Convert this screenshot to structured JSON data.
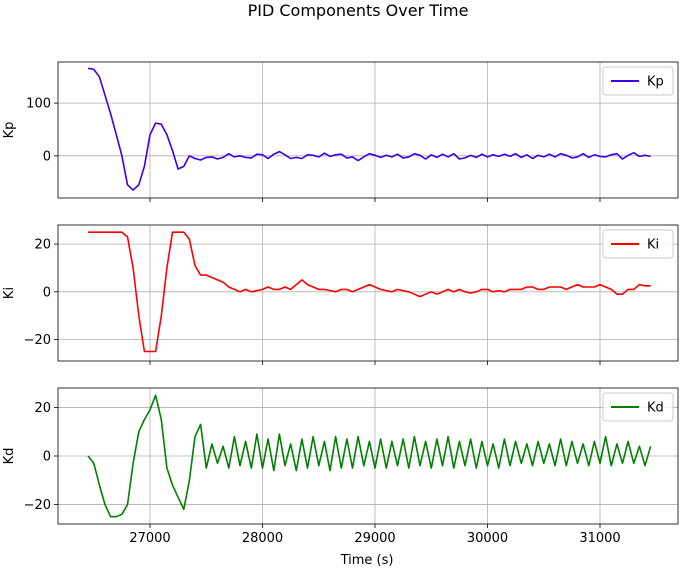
{
  "figure": {
    "title": "PID Components Over Time",
    "xlabel": "Time (s)"
  },
  "chart_data": [
    {
      "type": "line",
      "ylabel": "Kp",
      "xlim": [
        6200,
        31750
      ],
      "ylim": [
        -80,
        178
      ],
      "xticks": [
        27000,
        28000,
        29000,
        30000,
        31000
      ],
      "xtick_labels_visible": false,
      "yticks": [
        0,
        100
      ],
      "grid": true,
      "legend": "top-right",
      "series": [
        {
          "name": "Kp",
          "color": "#3b00e8",
          "x": [
            26450,
            26500,
            26550,
            26600,
            26650,
            26700,
            26750,
            26800,
            26850,
            26900,
            26950,
            27000,
            27050,
            27100,
            27150,
            27200,
            27250,
            27300,
            27350,
            27400,
            27450,
            27500,
            27550,
            27600,
            27650,
            27700,
            27750,
            27800,
            27850,
            27900,
            27950,
            28000,
            28050,
            28100,
            28150,
            28200,
            28250,
            28300,
            28350,
            28400,
            28450,
            28500,
            28550,
            28600,
            28650,
            28700,
            28750,
            28800,
            28850,
            28900,
            28950,
            29000,
            29050,
            29100,
            29150,
            29200,
            29250,
            29300,
            29350,
            29400,
            29450,
            29500,
            29550,
            29600,
            29650,
            29700,
            29750,
            29800,
            29850,
            29900,
            29950,
            30000,
            30050,
            30100,
            30150,
            30200,
            30250,
            30300,
            30350,
            30400,
            30450,
            30500,
            30550,
            30600,
            30650,
            30700,
            30750,
            30800,
            30850,
            30900,
            30950,
            31000,
            31050,
            31100,
            31150,
            31200,
            31250,
            31300,
            31350,
            31400,
            31450
          ],
          "y": [
            166,
            164,
            150,
            115,
            80,
            40,
            0,
            -55,
            -65,
            -55,
            -20,
            40,
            62,
            60,
            40,
            10,
            -25,
            -20,
            0,
            -5,
            -8,
            -3,
            -2,
            -6,
            -3,
            4,
            -2,
            0,
            -3,
            -4,
            3,
            2,
            -5,
            3,
            8,
            2,
            -5,
            -3,
            -5,
            2,
            1,
            -2,
            5,
            -1,
            2,
            3,
            -4,
            -2,
            -9,
            -2,
            4,
            1,
            -3,
            1,
            -2,
            3,
            -4,
            -2,
            4,
            1,
            -6,
            2,
            -3,
            3,
            -2,
            4,
            -6,
            -4,
            1,
            -3,
            3,
            -2,
            2,
            -1,
            3,
            -1,
            4,
            -3,
            2,
            -5,
            1,
            -2,
            3,
            -2,
            4,
            1,
            -4,
            -2,
            4,
            -3,
            2,
            -1,
            -2,
            2,
            4,
            -6,
            1,
            6,
            -1,
            1,
            -1
          ]
        }
      ]
    },
    {
      "type": "line",
      "ylabel": "Ki",
      "xlim": [
        6200,
        31750
      ],
      "ylim": [
        -29,
        28
      ],
      "xticks": [
        27000,
        28000,
        29000,
        30000,
        31000
      ],
      "xtick_labels_visible": false,
      "yticks": [
        -20,
        0,
        20
      ],
      "grid": true,
      "legend": "top-right",
      "series": [
        {
          "name": "Ki",
          "color": "#ff0000",
          "x": [
            26450,
            26500,
            26600,
            26700,
            26750,
            26800,
            26850,
            26900,
            26950,
            27000,
            27050,
            27100,
            27150,
            27200,
            27250,
            27300,
            27350,
            27400,
            27450,
            27500,
            27550,
            27600,
            27650,
            27700,
            27750,
            27800,
            27850,
            27900,
            27950,
            28000,
            28050,
            28100,
            28150,
            28200,
            28250,
            28300,
            28350,
            28400,
            28450,
            28500,
            28550,
            28600,
            28650,
            28700,
            28750,
            28800,
            28850,
            28900,
            28950,
            29000,
            29050,
            29100,
            29150,
            29200,
            29250,
            29300,
            29350,
            29400,
            29450,
            29500,
            29550,
            29600,
            29650,
            29700,
            29750,
            29800,
            29850,
            29900,
            29950,
            30000,
            30050,
            30100,
            30150,
            30200,
            30250,
            30300,
            30350,
            30400,
            30450,
            30500,
            30550,
            30600,
            30650,
            30700,
            30750,
            30800,
            30850,
            30900,
            30950,
            31000,
            31050,
            31100,
            31150,
            31200,
            31250,
            31300,
            31350,
            31400,
            31450
          ],
          "y": [
            25,
            25,
            25,
            25,
            25,
            23,
            10,
            -10,
            -25,
            -25,
            -25,
            -10,
            10,
            25,
            25,
            25,
            22,
            11,
            7,
            7,
            6,
            5,
            4,
            2,
            1,
            0,
            1,
            0,
            0.5,
            1,
            2,
            1,
            1,
            2,
            1,
            3,
            5,
            3,
            2,
            1,
            1,
            0.5,
            0,
            1,
            1,
            0,
            1,
            2,
            3,
            2,
            1,
            0.5,
            0,
            1,
            0.5,
            0,
            -1,
            -2,
            -1,
            0,
            -1,
            0,
            1,
            0,
            1,
            0,
            -0.5,
            0,
            1,
            1,
            0,
            0.5,
            0,
            1,
            1,
            1,
            2,
            2,
            1,
            1,
            2,
            2,
            2,
            1,
            2,
            3,
            2,
            2,
            2,
            3,
            2,
            1,
            -1,
            -1,
            1,
            1,
            3,
            2.5,
            2.5
          ]
        }
      ]
    },
    {
      "type": "line",
      "ylabel": "Kd",
      "xlim": [
        6200,
        31750
      ],
      "ylim": [
        -28,
        28
      ],
      "xticks": [
        27000,
        28000,
        29000,
        30000,
        31000
      ],
      "xtick_labels_visible": true,
      "yticks": [
        -20,
        0,
        20
      ],
      "grid": true,
      "legend": "top-right",
      "series": [
        {
          "name": "Kd",
          "color": "#008000",
          "x": [
            26450,
            26500,
            26550,
            26600,
            26650,
            26700,
            26750,
            26800,
            26850,
            26900,
            26950,
            27000,
            27050,
            27100,
            27150,
            27200,
            27250,
            27300,
            27350,
            27400,
            27450,
            27500,
            27550,
            27600,
            27650,
            27700,
            27750,
            27800,
            27850,
            27900,
            27950,
            28000,
            28050,
            28100,
            28150,
            28200,
            28250,
            28300,
            28350,
            28400,
            28450,
            28500,
            28550,
            28600,
            28650,
            28700,
            28750,
            28800,
            28850,
            28900,
            28950,
            29000,
            29050,
            29100,
            29150,
            29200,
            29250,
            29300,
            29350,
            29400,
            29450,
            29500,
            29550,
            29600,
            29650,
            29700,
            29750,
            29800,
            29850,
            29900,
            29950,
            30000,
            30050,
            30100,
            30150,
            30200,
            30250,
            30300,
            30350,
            30400,
            30450,
            30500,
            30550,
            30600,
            30650,
            30700,
            30750,
            30800,
            30850,
            30900,
            30950,
            31000,
            31050,
            31100,
            31150,
            31200,
            31250,
            31300,
            31350,
            31400,
            31450
          ],
          "y": [
            0,
            -3,
            -12,
            -20,
            -25,
            -25,
            -24,
            -20,
            -3,
            10,
            15,
            19,
            25,
            15,
            -5,
            -12,
            -17,
            -22,
            -10,
            8,
            13,
            -5,
            5,
            -3,
            4,
            -5,
            8,
            -4,
            6,
            -5,
            9,
            -5,
            7,
            -6,
            9,
            -4,
            5,
            -6,
            7,
            -5,
            8,
            -4,
            6,
            -6,
            8,
            -5,
            7,
            -5,
            8,
            -4,
            6,
            -5,
            7,
            -5,
            6,
            -4,
            7,
            -5,
            8,
            -4,
            6,
            -5,
            7,
            -4,
            8,
            -5,
            6,
            -4,
            7,
            -5,
            6,
            -4,
            5,
            -5,
            7,
            -4,
            6,
            -3,
            5,
            -4,
            6,
            -3,
            5,
            -4,
            7,
            -4,
            6,
            -3,
            5,
            -4,
            6,
            -3,
            8,
            -4,
            5,
            -3,
            6,
            -3,
            4,
            -4,
            4
          ]
        }
      ]
    }
  ]
}
